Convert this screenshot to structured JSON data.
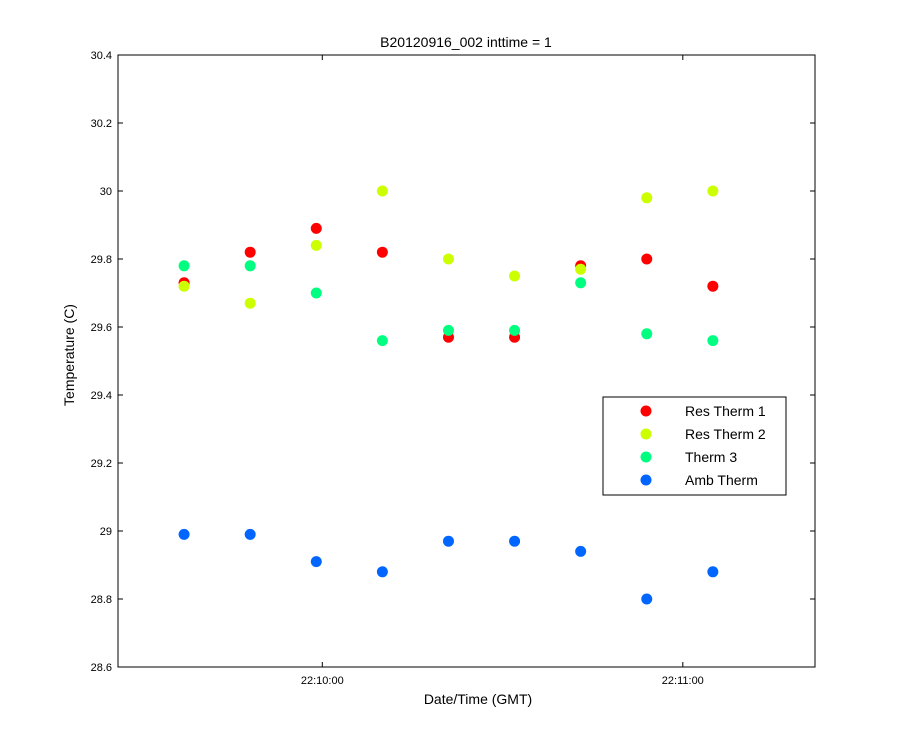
{
  "chart_data": {
    "type": "scatter",
    "title": "B20120916_002 inttime = 1",
    "xlabel": "Date/Time (GMT)",
    "ylabel": "Temperature (C)",
    "x_unit": "time",
    "x": [
      "22:09:37",
      "22:09:48",
      "22:09:59",
      "22:10:10",
      "22:10:21",
      "22:10:32",
      "22:10:43",
      "22:10:54",
      "22:11:05"
    ],
    "xlim": [
      "22:09:26",
      "22:11:22"
    ],
    "xticks": [
      "22:10:00",
      "22:11:00"
    ],
    "ylim": [
      28.6,
      30.4
    ],
    "yticks": [
      "28.6",
      "28.8",
      "29",
      "29.2",
      "29.4",
      "29.6",
      "29.8",
      "30",
      "30.2",
      "30.4"
    ],
    "grid": false,
    "legend_position": "right",
    "series": [
      {
        "name": "Res Therm 1",
        "color": "#ff0000",
        "values": [
          29.73,
          29.82,
          29.89,
          29.82,
          29.57,
          29.57,
          29.78,
          29.8,
          29.72
        ]
      },
      {
        "name": "Res Therm 2",
        "color": "#ccff00",
        "values": [
          29.72,
          29.67,
          29.84,
          30.0,
          29.8,
          29.75,
          29.77,
          29.98,
          30.0
        ]
      },
      {
        "name": "Therm 3",
        "color": "#00ff80",
        "values": [
          29.78,
          29.78,
          29.7,
          29.56,
          29.59,
          29.59,
          29.73,
          29.58,
          29.56
        ]
      },
      {
        "name": "Amb Therm",
        "color": "#0066ff",
        "values": [
          28.99,
          28.99,
          28.91,
          28.88,
          28.97,
          28.97,
          28.94,
          28.8,
          28.88
        ]
      }
    ]
  }
}
